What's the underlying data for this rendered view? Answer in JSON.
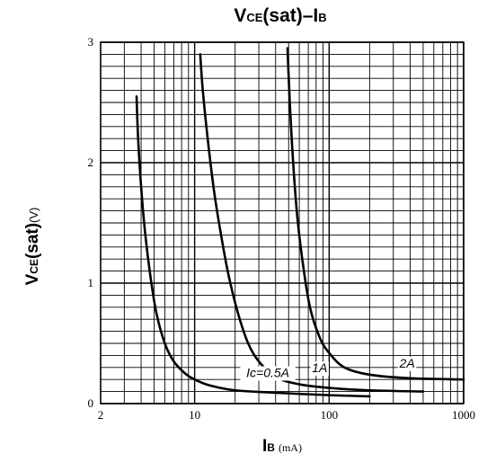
{
  "chart_data": {
    "type": "line",
    "title": {
      "main": "V",
      "sub": "CE",
      "tail": "(sat)–I",
      "sub2": "B"
    },
    "ylabel": {
      "main": "V",
      "sub": "CE",
      "tail": "(sat)",
      "unit": "(V)"
    },
    "xlabel": {
      "main": "I",
      "sub": "B",
      "unit": "(mA)"
    },
    "x_scale": "log",
    "xlim": [
      2,
      1000
    ],
    "ylim": [
      0,
      3
    ],
    "x_ticks": [
      "2",
      "10",
      "100",
      "1000"
    ],
    "y_ticks": [
      "0",
      "1",
      "2",
      "3"
    ],
    "grid": true,
    "series": [
      {
        "name": "Ic=0.5A",
        "x": [
          3.7,
          3.8,
          4.0,
          4.3,
          4.7,
          5.2,
          6.0,
          7.0,
          8.5,
          10,
          13,
          20,
          40,
          100,
          200
        ],
        "y": [
          2.55,
          2.2,
          1.8,
          1.4,
          1.05,
          0.75,
          0.5,
          0.35,
          0.25,
          0.2,
          0.15,
          0.11,
          0.09,
          0.07,
          0.06
        ]
      },
      {
        "name": "1A",
        "x": [
          11,
          11.5,
          12.5,
          14,
          16,
          18,
          21,
          25,
          30,
          40,
          60,
          100,
          200,
          500
        ],
        "y": [
          2.9,
          2.6,
          2.2,
          1.75,
          1.35,
          1.05,
          0.75,
          0.5,
          0.35,
          0.22,
          0.16,
          0.13,
          0.11,
          0.1
        ]
      },
      {
        "name": "2A",
        "x": [
          49,
          51,
          54,
          58,
          64,
          72,
          85,
          100,
          130,
          200,
          400,
          1000
        ],
        "y": [
          2.95,
          2.5,
          2.0,
          1.55,
          1.15,
          0.8,
          0.55,
          0.42,
          0.3,
          0.24,
          0.21,
          0.2
        ]
      }
    ],
    "curve_labels": [
      {
        "text": "Ic=0.5A",
        "x": 35,
        "y": 0.22
      },
      {
        "text": "1A",
        "x": 85,
        "y": 0.26
      },
      {
        "text": "2A",
        "x": 380,
        "y": 0.3
      }
    ]
  }
}
